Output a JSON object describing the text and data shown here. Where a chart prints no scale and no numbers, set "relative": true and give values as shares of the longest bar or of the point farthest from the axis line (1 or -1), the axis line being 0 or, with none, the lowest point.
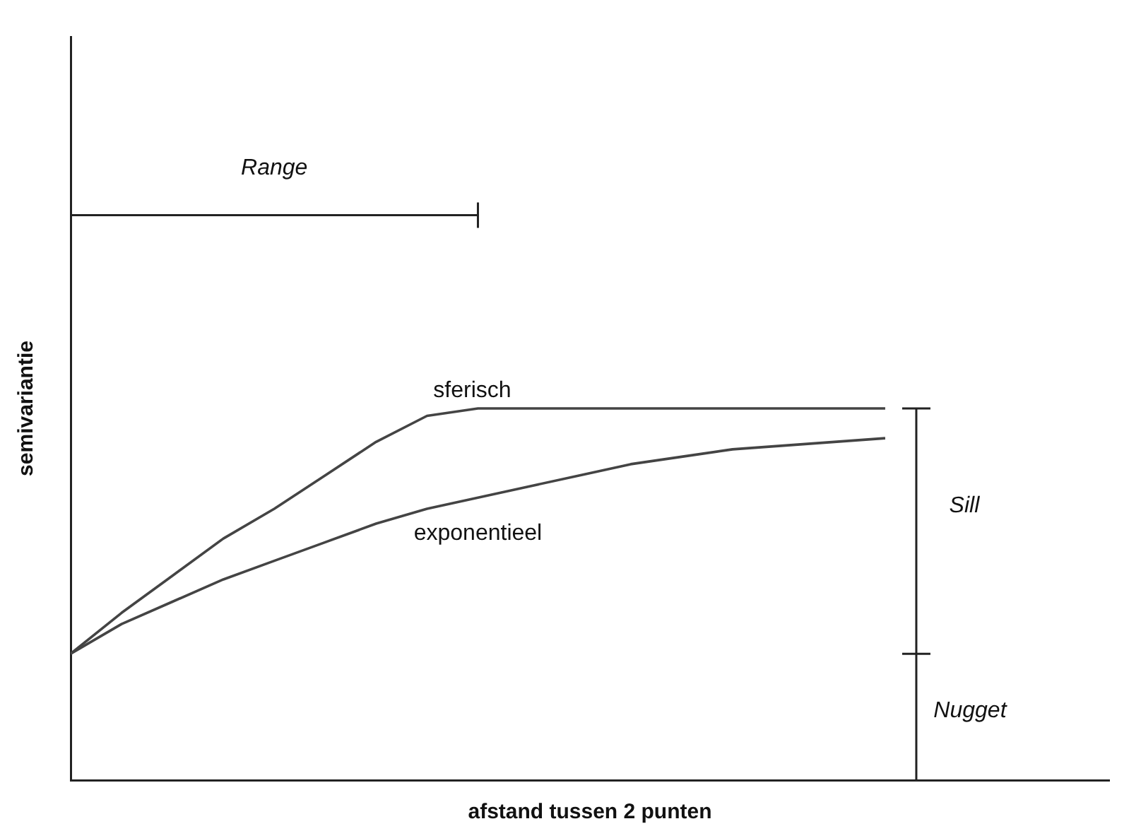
{
  "chart_data": {
    "type": "line",
    "relative": true,
    "xlabel": "afstand tussen 2 punten",
    "ylabel": "semivariantie",
    "categories": [
      null,
      null,
      null,
      null,
      null,
      null,
      null,
      null,
      null,
      null,
      null,
      null,
      null,
      null,
      null,
      null,
      null
    ],
    "series": [
      {
        "name": "sferisch",
        "color": "#444444",
        "values": [
          0.34,
          0.45,
          0.55,
          0.65,
          0.73,
          0.82,
          0.91,
          0.98,
          1,
          1,
          1,
          1,
          1,
          1,
          1,
          1,
          1
        ]
      },
      {
        "name": "exponentieel",
        "color": "#444444",
        "values": [
          0.34,
          0.42,
          0.48,
          0.54,
          0.59,
          0.64,
          0.69,
          0.73,
          0.76,
          0.79,
          0.82,
          0.85,
          0.87,
          0.89,
          0.9,
          0.91,
          0.92
        ]
      }
    ],
    "annotations": [
      "Range",
      "Sill",
      "Nugget"
    ],
    "legend": false,
    "grid": false,
    "marker": "none",
    "line_style": "solid"
  }
}
